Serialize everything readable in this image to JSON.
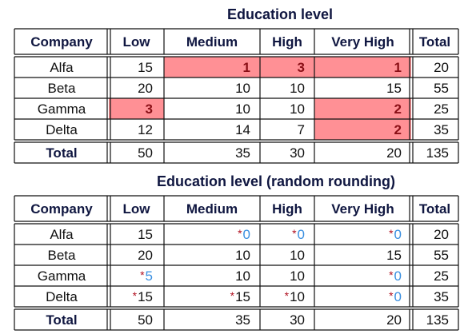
{
  "tables": [
    {
      "caption": "Education level",
      "corner_header": "Company",
      "columns": [
        "Low",
        "Medium",
        "High",
        "Very High",
        "Total"
      ],
      "rows": [
        {
          "company": "Alfa",
          "cells": [
            {
              "v": "15"
            },
            {
              "v": "1",
              "state": "suppressed"
            },
            {
              "v": "3",
              "state": "suppressed"
            },
            {
              "v": "1",
              "state": "suppressed"
            },
            {
              "v": "20"
            }
          ]
        },
        {
          "company": "Beta",
          "cells": [
            {
              "v": "20"
            },
            {
              "v": "10"
            },
            {
              "v": "10"
            },
            {
              "v": "15"
            },
            {
              "v": "55"
            }
          ]
        },
        {
          "company": "Gamma",
          "cells": [
            {
              "v": "3",
              "state": "suppressed"
            },
            {
              "v": "10"
            },
            {
              "v": "10"
            },
            {
              "v": "2",
              "state": "suppressed"
            },
            {
              "v": "25"
            }
          ]
        },
        {
          "company": "Delta",
          "cells": [
            {
              "v": "12"
            },
            {
              "v": "14"
            },
            {
              "v": "7"
            },
            {
              "v": "2",
              "state": "suppressed"
            },
            {
              "v": "35"
            }
          ]
        }
      ],
      "total_row": {
        "label": "Total",
        "cells": [
          "50",
          "35",
          "30",
          "20",
          "135"
        ]
      }
    },
    {
      "caption": "Education level (random rounding)",
      "corner_header": "Company",
      "columns": [
        "Low",
        "Medium",
        "High",
        "Very High",
        "Total"
      ],
      "rows": [
        {
          "company": "Alfa",
          "cells": [
            {
              "v": "15"
            },
            {
              "v": "0",
              "state": "rounded"
            },
            {
              "v": "0",
              "state": "rounded"
            },
            {
              "v": "0",
              "state": "rounded"
            },
            {
              "v": "20"
            }
          ]
        },
        {
          "company": "Beta",
          "cells": [
            {
              "v": "20"
            },
            {
              "v": "10"
            },
            {
              "v": "10"
            },
            {
              "v": "15"
            },
            {
              "v": "55"
            }
          ]
        },
        {
          "company": "Gamma",
          "cells": [
            {
              "v": "5",
              "state": "rounded"
            },
            {
              "v": "10"
            },
            {
              "v": "10"
            },
            {
              "v": "0",
              "state": "rounded"
            },
            {
              "v": "25"
            }
          ]
        },
        {
          "company": "Delta",
          "cells": [
            {
              "v": "15",
              "state": "rounded-changed"
            },
            {
              "v": "15",
              "state": "rounded-changed"
            },
            {
              "v": "10",
              "state": "rounded-changed"
            },
            {
              "v": "0",
              "state": "rounded"
            },
            {
              "v": "35"
            }
          ]
        }
      ],
      "total_row": {
        "label": "Total",
        "cells": [
          "50",
          "35",
          "30",
          "20",
          "135"
        ]
      }
    }
  ],
  "colors": {
    "header_text": "#0f1640",
    "suppressed_fill": "#ff9095",
    "suppressed_text": "#8a0f16",
    "asterisk": "#b01020",
    "rounded_text": "#3a8fe0"
  },
  "marker": "*"
}
